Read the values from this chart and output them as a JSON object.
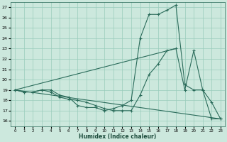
{
  "xlabel": "Humidex (Indice chaleur)",
  "bg_color": "#cce8dd",
  "grid_color": "#99ccbb",
  "line_color": "#2a6b5a",
  "xlim": [
    -0.5,
    23.5
  ],
  "ylim": [
    15.5,
    27.5
  ],
  "yticks": [
    16,
    17,
    18,
    19,
    20,
    21,
    22,
    23,
    24,
    25,
    26,
    27
  ],
  "xticks": [
    0,
    1,
    2,
    3,
    4,
    5,
    6,
    7,
    8,
    9,
    10,
    11,
    12,
    13,
    14,
    15,
    16,
    17,
    18,
    19,
    20,
    21,
    22,
    23
  ],
  "line1_x": [
    0,
    1,
    2,
    3,
    4,
    5,
    6,
    7,
    8,
    9,
    10,
    11,
    12,
    13,
    14,
    15,
    16,
    17,
    18,
    19,
    20,
    21,
    22,
    23
  ],
  "line1_y": [
    19,
    18.8,
    18.8,
    19,
    19,
    18.5,
    18.3,
    17.5,
    17.3,
    17.3,
    17.0,
    17.2,
    17.5,
    18.0,
    24.0,
    26.3,
    26.3,
    26.7,
    27.2,
    19.5,
    19.0,
    19.0,
    17.8,
    16.2
  ],
  "line2_x": [
    0,
    1,
    2,
    3,
    4,
    5,
    6,
    7,
    8,
    9,
    10,
    11,
    12,
    13,
    14,
    15,
    16,
    17,
    18,
    19,
    20,
    21,
    22,
    23
  ],
  "line2_y": [
    19,
    18.8,
    18.8,
    19,
    18.8,
    18.3,
    18.1,
    18.0,
    17.8,
    17.5,
    17.2,
    17.0,
    17.0,
    17.0,
    18.5,
    20.5,
    21.5,
    22.8,
    23.0,
    19.0,
    22.8,
    19.0,
    16.2,
    16.2
  ],
  "line3_x": [
    0,
    23
  ],
  "line3_y": [
    19,
    16.2
  ],
  "line4_x": [
    0,
    18
  ],
  "line4_y": [
    19,
    23.0
  ]
}
